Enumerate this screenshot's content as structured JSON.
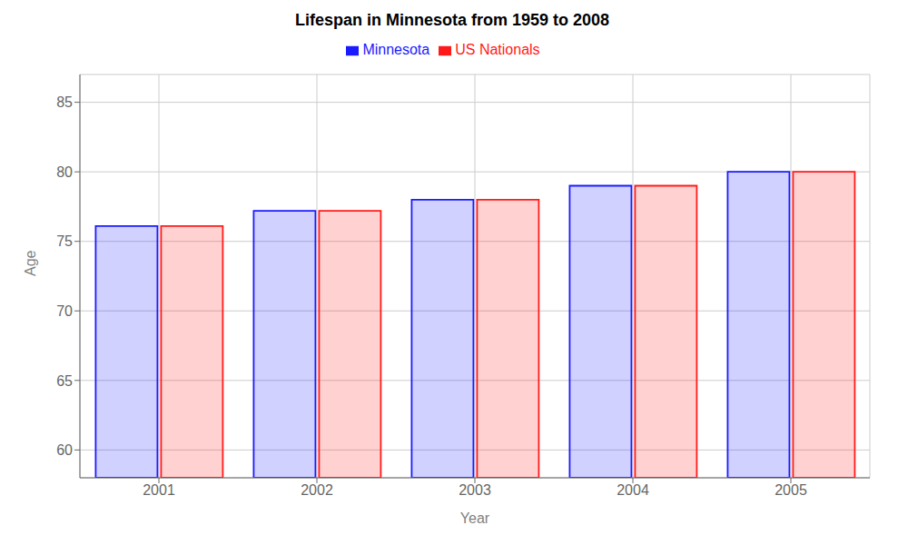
{
  "chart_data": {
    "type": "bar",
    "title": "Lifespan in Minnesota from 1959 to 2008",
    "xlabel": "Year",
    "ylabel": "Age",
    "categories": [
      "2001",
      "2002",
      "2003",
      "2004",
      "2005"
    ],
    "series": [
      {
        "name": "Minnesota",
        "color": "#1a1aff",
        "values": [
          76.1,
          77.2,
          78.0,
          79.0,
          80.0
        ]
      },
      {
        "name": "US Nationals",
        "color": "#ff1a1a",
        "values": [
          76.1,
          77.2,
          78.0,
          79.0,
          80.0
        ]
      }
    ],
    "ylim": [
      58,
      87
    ],
    "yticks": [
      60,
      65,
      70,
      75,
      80,
      85
    ],
    "grid": true,
    "legend": "top"
  }
}
